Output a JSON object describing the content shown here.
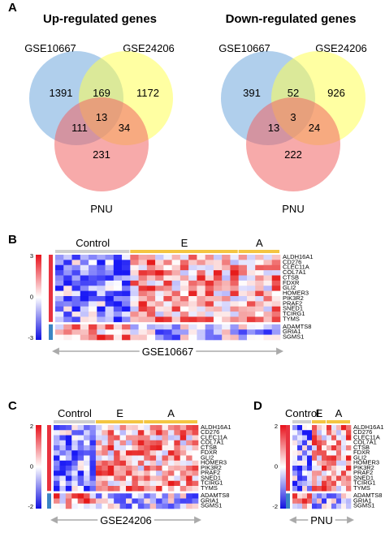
{
  "panels": {
    "A": "A",
    "B": "B",
    "C": "C",
    "D": "D"
  },
  "venn_up": {
    "title": "Up-regulated genes",
    "set_labels": [
      "GSE10667",
      "GSE24206",
      "PNU"
    ],
    "counts": {
      "a_only": "1391",
      "b_only": "1172",
      "c_only": "231",
      "ab": "169",
      "ac": "111",
      "bc": "34",
      "abc": "13"
    }
  },
  "venn_down": {
    "title": "Down-regulated genes",
    "set_labels": [
      "GSE10667",
      "GSE24206",
      "PNU"
    ],
    "counts": {
      "a_only": "391",
      "b_only": "926",
      "c_only": "222",
      "ab": "52",
      "ac": "13",
      "bc": "24",
      "abc": "3"
    }
  },
  "colors": {
    "set_a": "#6fa8dc",
    "set_b": "#ffff66",
    "set_c": "#f08080",
    "group_bar": "#f4c542",
    "control_bar": "#cfcfcf",
    "up_bar": "#e8323f",
    "down_bar": "#3a85c4"
  },
  "colorbar_ticks": {
    "top": "3",
    "mid": "0",
    "bottom": "-3",
    "top2": "2",
    "bottom2": "-2"
  },
  "genes_up": [
    "ALDH16A1",
    "CD276",
    "CLEC11A",
    "COL7A1",
    "CTSB",
    "FDXR",
    "GLI2",
    "HOMER3",
    "PIK3R2",
    "PRAF2",
    "SNED1",
    "TCIRG1",
    "TYMS"
  ],
  "genes_down": [
    "ADAMTS8",
    "GRIA1",
    "SGMS1"
  ],
  "heat_b": {
    "dataset": "GSE10667",
    "groups": [
      "Control",
      "E",
      "A"
    ]
  },
  "heat_c": {
    "dataset": "GSE24206",
    "groups": [
      "Control",
      "E",
      "A"
    ]
  },
  "heat_d": {
    "dataset": "PNU",
    "groups": [
      "Control",
      "E",
      "A"
    ]
  }
}
